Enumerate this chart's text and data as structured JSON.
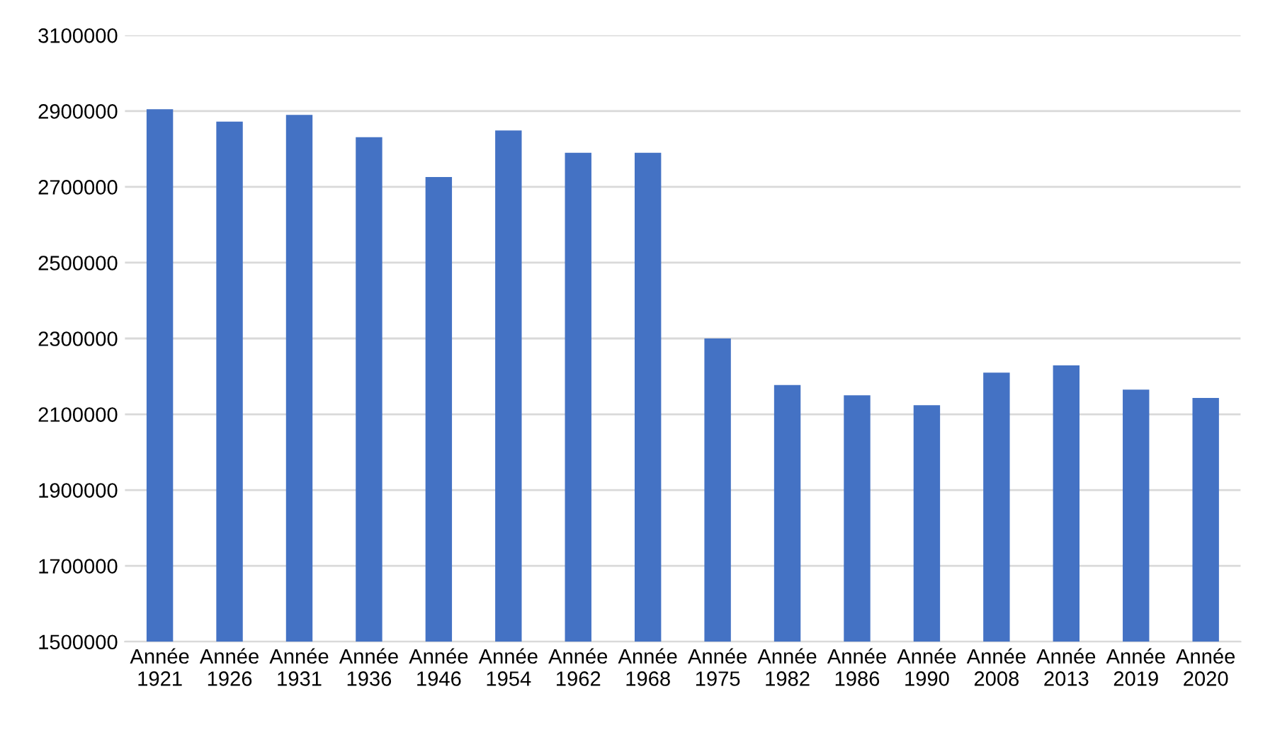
{
  "chart_data": {
    "type": "bar",
    "categories": [
      "Année\n1921",
      "Année\n1926",
      "Année\n1931",
      "Année\n1936",
      "Année\n1946",
      "Année\n1954",
      "Année\n1962",
      "Année\n1968",
      "Année\n1975",
      "Année\n1982",
      "Année\n1986",
      "Année\n1990",
      "Année\n2008",
      "Année\n2013",
      "Année\n2019",
      "Année\n2020"
    ],
    "values": [
      2905000,
      2872000,
      2890000,
      2831000,
      2726000,
      2849000,
      2790000,
      2790000,
      2300000,
      2177000,
      2150000,
      2124000,
      2210000,
      2229000,
      2165000,
      2143000
    ],
    "color": "#4472c4",
    "ylim": [
      1500000,
      3100000
    ],
    "yticks": [
      1500000,
      1700000,
      1900000,
      2100000,
      2300000,
      2500000,
      2700000,
      2900000,
      3100000
    ],
    "grid": "y"
  }
}
